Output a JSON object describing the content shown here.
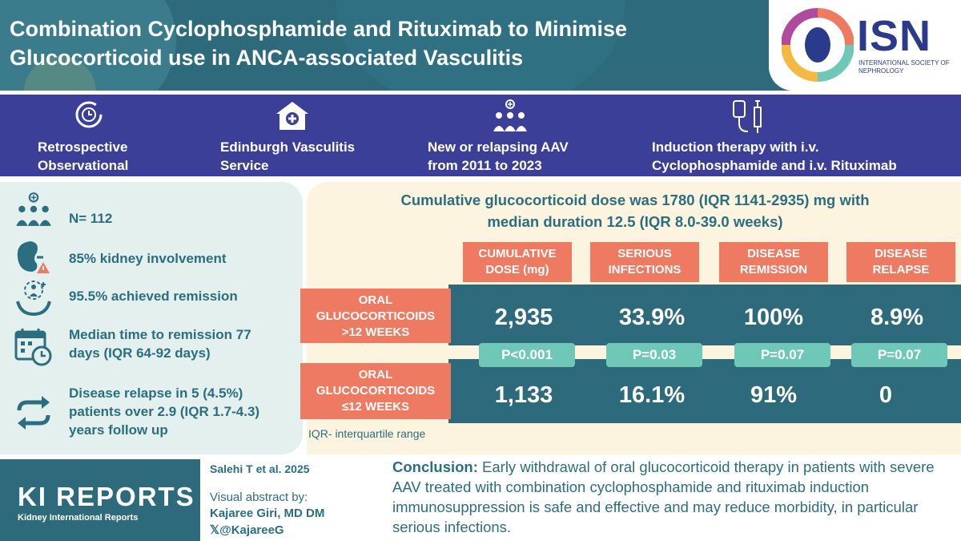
{
  "header": {
    "title": "Combination Cyclophosphamide and Rituximab to Minimise Glucocorticoid use in ANCA-associated Vasculitis",
    "logo_text": "ISN",
    "logo_subtext": "INTERNATIONAL SOCIETY OF NEPHROLOGY"
  },
  "methods": [
    {
      "icon": "clock-cycle-icon",
      "line1": "Retrospective",
      "line2": "Observational"
    },
    {
      "icon": "hospital-icon",
      "line1": "Edinburgh Vasculitis",
      "line2": "Service"
    },
    {
      "icon": "people-group-icon",
      "line1": "New or relapsing AAV",
      "line2": "from 2011 to 2023"
    },
    {
      "icon": "iv-drip-syringe-icon",
      "line1": "Induction therapy with i.v.",
      "line2": "Cyclophosphamide and i.v. Rituximab"
    }
  ],
  "stats": [
    {
      "icon": "people-group-icon",
      "text": "N= 112"
    },
    {
      "icon": "kidney-icon",
      "text": "85% kidney involvement"
    },
    {
      "icon": "hands-person-icon",
      "text": "95.5% achieved remission"
    },
    {
      "icon": "calendar-clock-icon",
      "line1": "Median time to remission 77",
      "line2": "days (IQR 64-92 days)"
    },
    {
      "icon": "relapse-arrows-icon",
      "line1": "Disease relapse in 5 (4.5%)",
      "line2": "patients over 2.9 (IQR 1.7-4.3)",
      "line3": "years follow up"
    }
  ],
  "results": {
    "title_line1": "Cumulative glucocorticoid dose was 1780 (IQR 1141-2935) mg with",
    "title_line2": "median duration 12.5 (IQR 8.0-39.0 weeks)",
    "columns": [
      {
        "line1": "CUMULATIVE",
        "line2": "DOSE (mg)"
      },
      {
        "line1": "SERIOUS",
        "line2": "INFECTIONS"
      },
      {
        "line1": "DISEASE",
        "line2": "REMISSION"
      },
      {
        "line1": "DISEASE",
        "line2": "RELAPSE"
      }
    ],
    "rows": [
      {
        "line1": "ORAL",
        "line2": "GLUCOCORTICOIDS",
        "line3": ">12 WEEKS",
        "values": [
          "2,935",
          "33.9%",
          "100%",
          "8.9%"
        ]
      },
      {
        "line1": "ORAL",
        "line2": "GLUCOCORTICOIDS",
        "line3": "≤12 WEEKS",
        "values": [
          "1,133",
          "16.1%",
          "91%",
          "0"
        ]
      }
    ],
    "p_values": [
      "P<0.001",
      "P=0.03",
      "P=0.07",
      "P=0.07"
    ],
    "note": "IQR- interquartile range"
  },
  "footer": {
    "brand": "KI REPORTS",
    "brand_sub": "Kidney International Reports",
    "citation": "Salehi T et al. 2025",
    "visual_abstract_by": "Visual abstract by:",
    "author": "Kajaree Giri, MD DM",
    "handle": "@KajareeG",
    "conclusion_label": "Conclusion:",
    "conclusion_text": " Early withdrawal of oral glucocorticoid therapy in patients with severe AAV treated with combination cyclophosphamide and rituximab induction immunosuppression is safe and effective and may reduce morbidity, in particular serious infections."
  },
  "colors": {
    "teal": "#2c6a7c",
    "indigo": "#3b3f98",
    "coral": "#ef7a62",
    "mint": "#6fc7b8",
    "cream": "#fdf4e0",
    "pale": "#e3f0ee"
  }
}
